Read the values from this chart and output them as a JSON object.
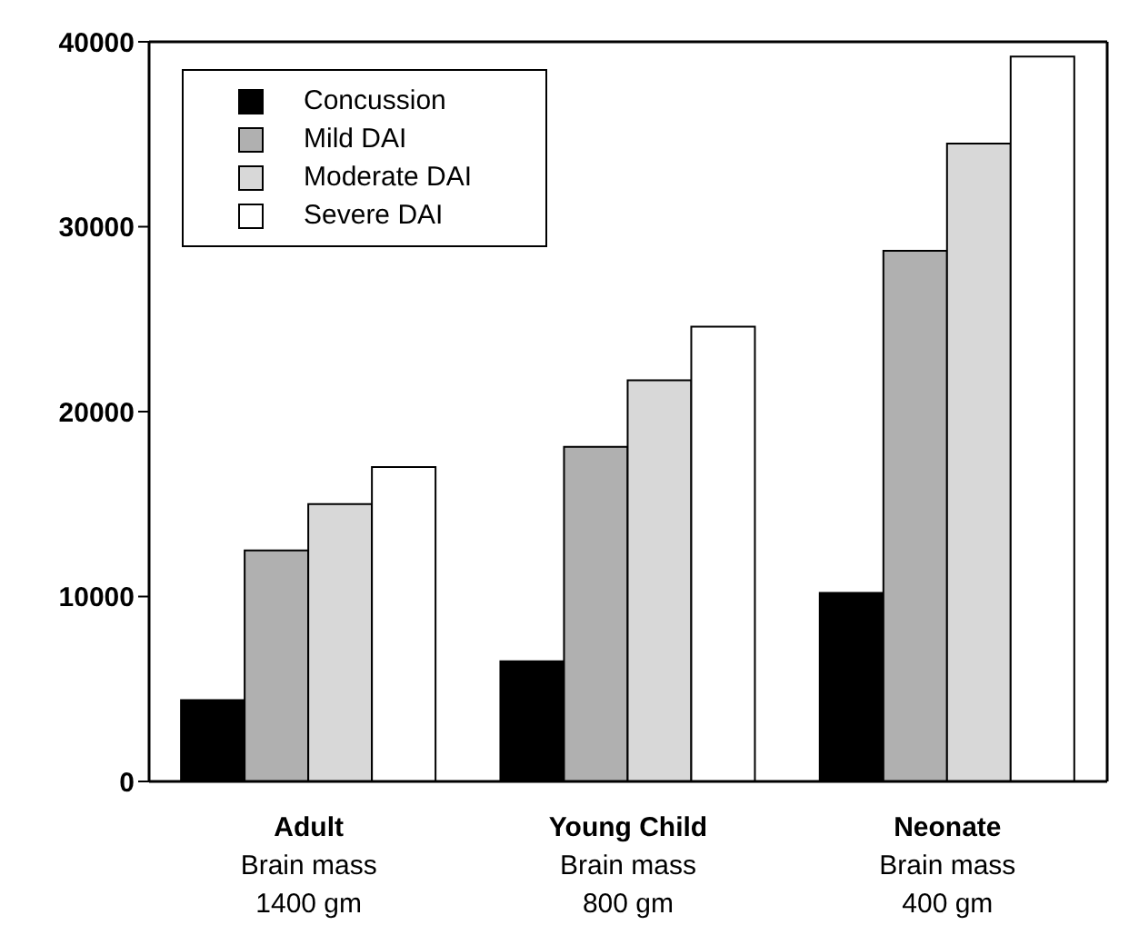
{
  "chart_data": {
    "type": "bar",
    "categories": [
      "Adult\nBrain mass\n1400 gm",
      "Young Child\nBrain mass\n800 gm",
      "Neonate\nBrain mass\n400 gm"
    ],
    "series": [
      {
        "name": "Concussion",
        "color": "#000000",
        "values": [
          4400,
          6500,
          10200
        ]
      },
      {
        "name": "Mild DAI",
        "color": "#b0b0b0",
        "values": [
          12500,
          18100,
          28700
        ]
      },
      {
        "name": "Moderate DAI",
        "color": "#d8d8d8",
        "values": [
          15000,
          21700,
          34500
        ]
      },
      {
        "name": "Severe DAI",
        "color": "#ffffff",
        "values": [
          17000,
          24600,
          39200
        ]
      }
    ],
    "ylim": [
      0,
      40000
    ],
    "yticks": [
      0,
      10000,
      20000,
      30000,
      40000
    ],
    "grid": false,
    "legend": "top left"
  }
}
